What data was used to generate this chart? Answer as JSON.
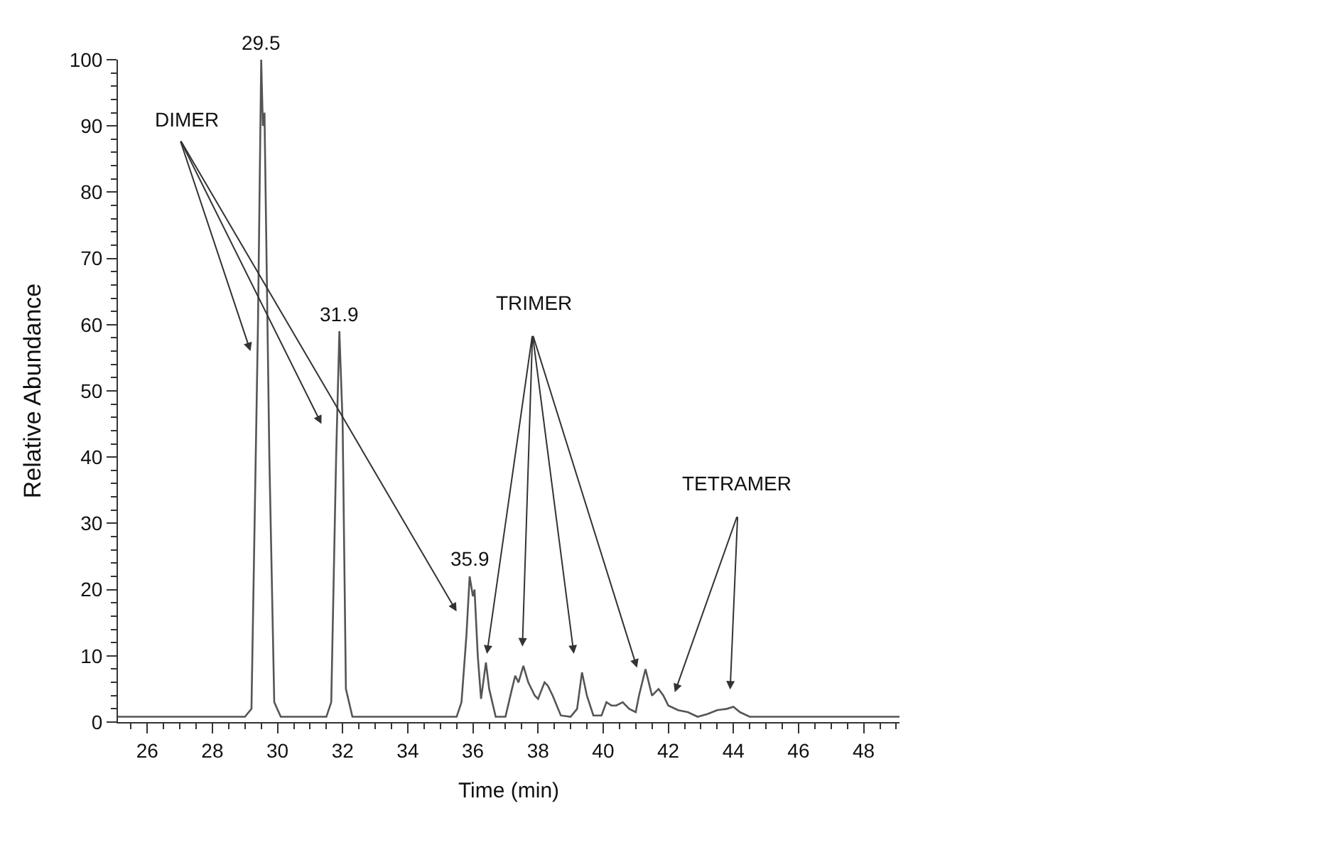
{
  "chart_data": {
    "type": "line",
    "xlabel": "Time (min)",
    "ylabel": "Relative Abundance",
    "xlim": [
      25.1,
      49.1
    ],
    "xticks": [
      26,
      28,
      30,
      32,
      34,
      36,
      38,
      40,
      42,
      44,
      46,
      48
    ],
    "ylim": [
      0,
      100
    ],
    "yticks": [
      0,
      10,
      20,
      30,
      40,
      50,
      60,
      70,
      80,
      90,
      100
    ],
    "marker": "none",
    "line_style": "solid",
    "series": [
      {
        "color": "#555555",
        "x": [
          25.1,
          26.5,
          28.0,
          29.0,
          29.2,
          29.4,
          29.5,
          29.55,
          29.6,
          29.75,
          29.9,
          30.1,
          31.5,
          31.65,
          31.8,
          31.9,
          32.0,
          32.1,
          32.3,
          34.0,
          35.5,
          35.65,
          35.8,
          35.9,
          36.0,
          36.05,
          36.15,
          36.25,
          36.4,
          36.5,
          36.7,
          37.0,
          37.2,
          37.3,
          37.4,
          37.55,
          37.7,
          37.9,
          38.0,
          38.2,
          38.3,
          38.45,
          38.7,
          39.0,
          39.2,
          39.35,
          39.5,
          39.7,
          39.95,
          40.1,
          40.25,
          40.4,
          40.6,
          40.8,
          41.0,
          41.1,
          41.3,
          41.5,
          41.7,
          41.85,
          42.0,
          42.3,
          42.6,
          42.9,
          43.2,
          43.5,
          43.8,
          44.0,
          44.2,
          44.5,
          46.0,
          49.1
        ],
        "values": [
          0.8,
          0.8,
          0.8,
          0.8,
          2,
          60,
          100,
          90,
          92,
          40,
          3,
          0.8,
          0.8,
          3,
          40,
          59,
          45,
          5,
          0.8,
          0.8,
          0.8,
          3,
          13,
          22,
          19,
          20,
          10,
          3.5,
          9,
          5,
          0.8,
          0.8,
          5,
          7,
          6,
          8.5,
          6,
          4,
          3.5,
          6,
          5.5,
          4,
          1,
          0.8,
          2,
          7.5,
          4,
          1,
          1,
          3,
          2.5,
          2.5,
          3,
          2,
          1.5,
          4,
          8,
          4,
          5,
          4,
          2.5,
          1.8,
          1.5,
          0.8,
          1.2,
          1.8,
          2,
          2.3,
          1.5,
          0.8,
          0.8,
          0.8
        ]
      }
    ],
    "annotations": [
      {
        "text": "29.5",
        "x": 29.5,
        "y": 100
      },
      {
        "text": "31.9",
        "x": 31.9,
        "y": 59
      },
      {
        "text": "35.9",
        "x": 35.9,
        "y": 22
      },
      "DIMER",
      "TRIMER",
      "TETRAMER"
    ]
  }
}
